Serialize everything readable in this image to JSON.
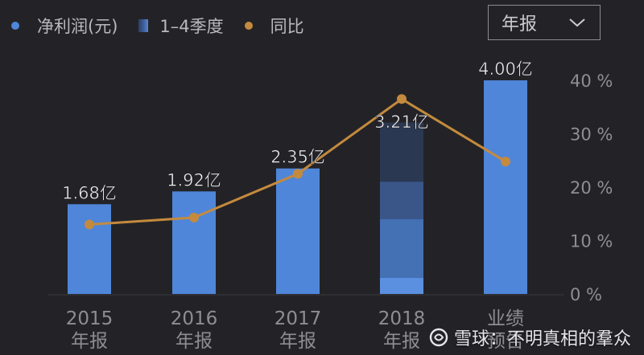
{
  "legend": {
    "profit_label": "净利润(元)",
    "quarters_label": "1–4季度",
    "yoy_label": "同比",
    "colors": {
      "profit": "#4f86d9",
      "yoy": "#c48a3e"
    }
  },
  "period_select": {
    "value": "年报"
  },
  "watermark": {
    "text": "雪球：不明真相的羣众"
  },
  "chart_data": {
    "type": "bar",
    "categories": [
      "2015\n年报",
      "2016\n年报",
      "2017\n年报",
      "2018\n年报",
      "业绩\n预告"
    ],
    "series": [
      {
        "name": "净利润(元)",
        "type": "bar",
        "values": [
          1.68,
          1.92,
          2.35,
          3.21,
          4.0
        ],
        "labels": [
          "1.68亿",
          "1.92亿",
          "2.35亿",
          "3.21亿",
          "4.00亿"
        ]
      },
      {
        "name": "同比",
        "type": "line",
        "values": [
          13,
          14.3,
          22.5,
          36.5,
          24.8
        ]
      }
    ],
    "quarter_breakdown_2018": [
      0.3,
      1.4,
      2.1,
      3.21
    ],
    "y2_ticks": [
      "0 %",
      "10 %",
      "20 %",
      "30 %",
      "40 %"
    ],
    "y2lim": [
      0,
      40
    ],
    "colors": {
      "bar": "#4f86d9",
      "line": "#c48a3e",
      "quarter_dark": "#2b3852"
    }
  }
}
